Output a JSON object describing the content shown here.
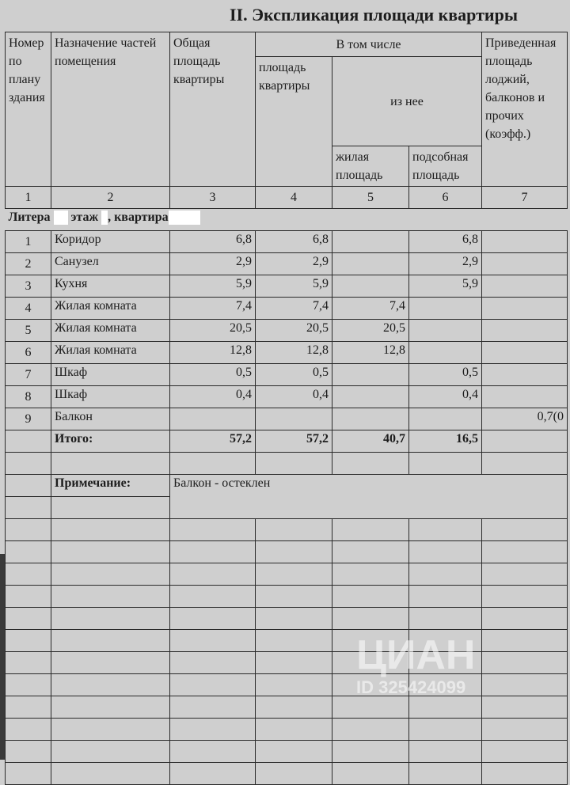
{
  "title": "II. Экспликация площади квартиры",
  "headers": {
    "c1": "Номер по плану здания",
    "c2": "Назначение частей помещения",
    "c3": "Общая площадь квартиры",
    "group": "В том числе",
    "c4": "площадь квартиры",
    "subgroup": "из нее",
    "c5": "жилая площадь",
    "c6": "подсобная площадь",
    "c7": "Приведенная площадь лоджий, балконов и прочих (коэфф.)"
  },
  "col_numbers": [
    "1",
    "2",
    "3",
    "4",
    "5",
    "6",
    "7"
  ],
  "section": {
    "litera": "Литера",
    "floor": "этаж",
    "apartment": ", квартира"
  },
  "rows": [
    {
      "n": "1",
      "name": "Коридор",
      "total": "6,8",
      "apt": "6,8",
      "living": "",
      "aux": "6,8",
      "reduced": ""
    },
    {
      "n": "2",
      "name": "Санузел",
      "total": "2,9",
      "apt": "2,9",
      "living": "",
      "aux": "2,9",
      "reduced": ""
    },
    {
      "n": "3",
      "name": "Кухня",
      "total": "5,9",
      "apt": "5,9",
      "living": "",
      "aux": "5,9",
      "reduced": ""
    },
    {
      "n": "4",
      "name": "Жилая комната",
      "total": "7,4",
      "apt": "7,4",
      "living": "7,4",
      "aux": "",
      "reduced": ""
    },
    {
      "n": "5",
      "name": "Жилая комната",
      "total": "20,5",
      "apt": "20,5",
      "living": "20,5",
      "aux": "",
      "reduced": ""
    },
    {
      "n": "6",
      "name": "Жилая комната",
      "total": "12,8",
      "apt": "12,8",
      "living": "12,8",
      "aux": "",
      "reduced": ""
    },
    {
      "n": "7",
      "name": "Шкаф",
      "total": "0,5",
      "apt": "0,5",
      "living": "",
      "aux": "0,5",
      "reduced": ""
    },
    {
      "n": "8",
      "name": "Шкаф",
      "total": "0,4",
      "apt": "0,4",
      "living": "",
      "aux": "0,4",
      "reduced": ""
    },
    {
      "n": "9",
      "name": "Балкон",
      "total": "",
      "apt": "",
      "living": "",
      "aux": "",
      "reduced": "0,7(0"
    }
  ],
  "total": {
    "label": "Итого:",
    "total": "57,2",
    "apt": "57,2",
    "living": "40,7",
    "aux": "16,5"
  },
  "note": {
    "label": "Примечание:",
    "text": "Балкон - остеклен"
  },
  "watermark": {
    "logo": "ЦИАН",
    "id": "ID 325424099"
  }
}
